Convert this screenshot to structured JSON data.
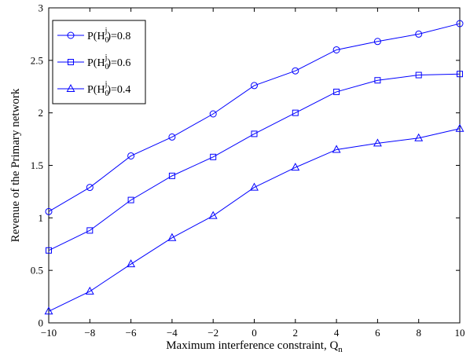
{
  "chart_data": {
    "type": "line",
    "title": "",
    "xlabel": "Maximum interference constraint, Q",
    "xlabel_subscript": "n",
    "ylabel": "Revenue of the Primary network",
    "xlim": [
      -10,
      10
    ],
    "ylim": [
      0,
      3
    ],
    "x": [
      -10,
      -8,
      -6,
      -4,
      -2,
      0,
      2,
      4,
      6,
      8,
      10
    ],
    "x_ticks": [
      -10,
      -8,
      -6,
      -4,
      -2,
      0,
      2,
      4,
      6,
      8,
      10
    ],
    "x_tick_labels": [
      "−10",
      "−8",
      "−6",
      "−4",
      "−2",
      "0",
      "2",
      "4",
      "6",
      "8",
      "10"
    ],
    "y_ticks": [
      0,
      0.5,
      1,
      1.5,
      2,
      2.5,
      3
    ],
    "y_tick_labels": [
      "0",
      "0.5",
      "1",
      "1.5",
      "2",
      "2.5",
      "3"
    ],
    "grid": false,
    "legend_position": "top-left",
    "line_color": "#0000ff",
    "series": [
      {
        "name": "P(H0j)=0.8",
        "label_parts": {
          "pre": "P(H",
          "sub": "0",
          "sup": "j",
          "post": ")=0.8"
        },
        "marker": "circle",
        "values": [
          1.06,
          1.29,
          1.59,
          1.77,
          1.99,
          2.26,
          2.4,
          2.6,
          2.68,
          2.75,
          2.85
        ]
      },
      {
        "name": "P(H0j)=0.6",
        "label_parts": {
          "pre": "P(H",
          "sub": "0",
          "sup": "j",
          "post": ")=0.6"
        },
        "marker": "square",
        "values": [
          0.69,
          0.88,
          1.17,
          1.4,
          1.58,
          1.8,
          2.0,
          2.2,
          2.31,
          2.36,
          2.37
        ]
      },
      {
        "name": "P(H0j)=0.4",
        "label_parts": {
          "pre": "P(H",
          "sub": "0",
          "sup": "j",
          "post": ")=0.4"
        },
        "marker": "triangle",
        "values": [
          0.11,
          0.3,
          0.56,
          0.81,
          1.02,
          1.29,
          1.48,
          1.65,
          1.71,
          1.76,
          1.85
        ]
      }
    ]
  }
}
